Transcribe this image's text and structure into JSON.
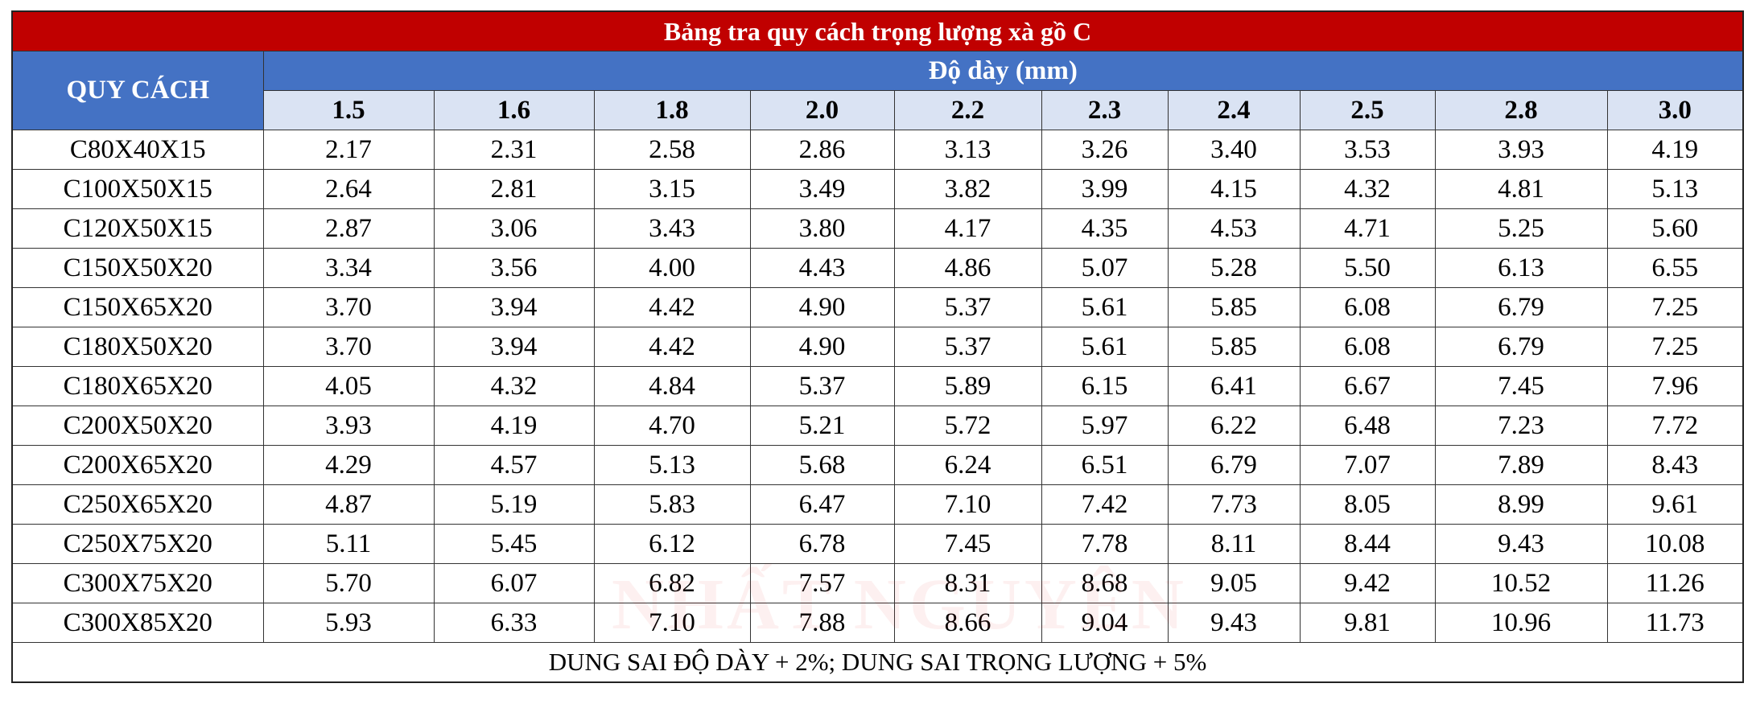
{
  "title": "Bảng tra quy cách trọng lượng xà gồ C",
  "table": {
    "spec_header": "QUY CÁCH",
    "thickness_header": "Độ dày (mm)",
    "thicknesses": [
      "1.5",
      "1.6",
      "1.8",
      "2.0",
      "2.2",
      "2.3",
      "2.4",
      "2.5",
      "2.8",
      "3.0"
    ],
    "rows": [
      {
        "spec": "C80X40X15",
        "weights": [
          "2.17",
          "2.31",
          "2.58",
          "2.86",
          "3.13",
          "3.26",
          "3.40",
          "3.53",
          "3.93",
          "4.19"
        ]
      },
      {
        "spec": "C100X50X15",
        "weights": [
          "2.64",
          "2.81",
          "3.15",
          "3.49",
          "3.82",
          "3.99",
          "4.15",
          "4.32",
          "4.81",
          "5.13"
        ]
      },
      {
        "spec": "C120X50X15",
        "weights": [
          "2.87",
          "3.06",
          "3.43",
          "3.80",
          "4.17",
          "4.35",
          "4.53",
          "4.71",
          "5.25",
          "5.60"
        ]
      },
      {
        "spec": "C150X50X20",
        "weights": [
          "3.34",
          "3.56",
          "4.00",
          "4.43",
          "4.86",
          "5.07",
          "5.28",
          "5.50",
          "6.13",
          "6.55"
        ]
      },
      {
        "spec": "C150X65X20",
        "weights": [
          "3.70",
          "3.94",
          "4.42",
          "4.90",
          "5.37",
          "5.61",
          "5.85",
          "6.08",
          "6.79",
          "7.25"
        ]
      },
      {
        "spec": "C180X50X20",
        "weights": [
          "3.70",
          "3.94",
          "4.42",
          "4.90",
          "5.37",
          "5.61",
          "5.85",
          "6.08",
          "6.79",
          "7.25"
        ]
      },
      {
        "spec": "C180X65X20",
        "weights": [
          "4.05",
          "4.32",
          "4.84",
          "5.37",
          "5.89",
          "6.15",
          "6.41",
          "6.67",
          "7.45",
          "7.96"
        ]
      },
      {
        "spec": "C200X50X20",
        "weights": [
          "3.93",
          "4.19",
          "4.70",
          "5.21",
          "5.72",
          "5.97",
          "6.22",
          "6.48",
          "7.23",
          "7.72"
        ]
      },
      {
        "spec": "C200X65X20",
        "weights": [
          "4.29",
          "4.57",
          "5.13",
          "5.68",
          "6.24",
          "6.51",
          "6.79",
          "7.07",
          "7.89",
          "8.43"
        ]
      },
      {
        "spec": "C250X65X20",
        "weights": [
          "4.87",
          "5.19",
          "5.83",
          "6.47",
          "7.10",
          "7.42",
          "7.73",
          "8.05",
          "8.99",
          "9.61"
        ]
      },
      {
        "spec": "C250X75X20",
        "weights": [
          "5.11",
          "5.45",
          "6.12",
          "6.78",
          "7.45",
          "7.78",
          "8.11",
          "8.44",
          "9.43",
          "10.08"
        ]
      },
      {
        "spec": "C300X75X20",
        "weights": [
          "5.70",
          "6.07",
          "6.82",
          "7.57",
          "8.31",
          "8.68",
          "9.05",
          "9.42",
          "10.52",
          "11.26"
        ]
      },
      {
        "spec": "C300X85X20",
        "weights": [
          "5.93",
          "6.33",
          "7.10",
          "7.88",
          "8.66",
          "9.04",
          "9.43",
          "9.81",
          "10.96",
          "11.73"
        ]
      }
    ]
  },
  "footer": "DUNG SAI ĐỘ DÀY + 2%; DUNG SAI TRỌNG LƯỢNG + 5%",
  "watermark": "NHẤT NGUYÊN"
}
